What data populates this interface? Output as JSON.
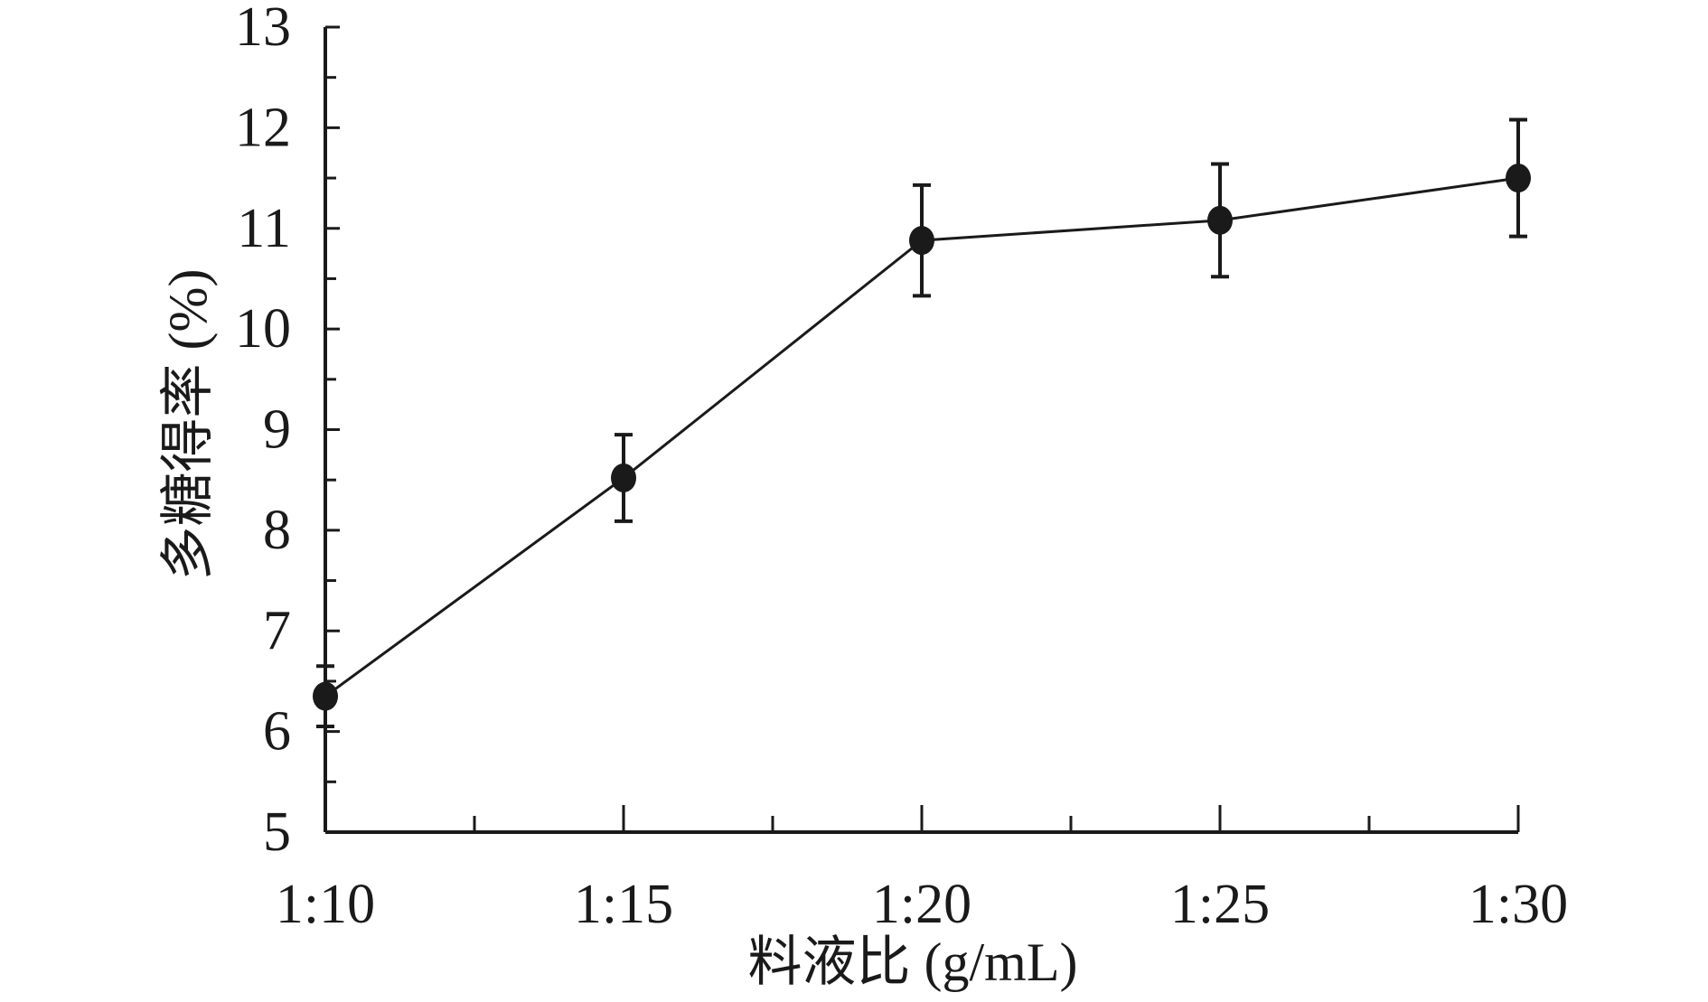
{
  "chart_data": {
    "type": "line",
    "title": "",
    "xlabel": "料液比 (g/mL)",
    "ylabel": "多糖得率 (%)",
    "categories": [
      "1:10",
      "1:15",
      "1:20",
      "1:25",
      "1:30"
    ],
    "series": [
      {
        "values": [
          6.35,
          8.52,
          10.88,
          11.08,
          11.5
        ],
        "error": [
          0.3,
          0.43,
          0.55,
          0.56,
          0.58
        ]
      }
    ],
    "ylim": [
      5,
      13
    ],
    "yticks": [
      5,
      6,
      7,
      8,
      9,
      10,
      11,
      12,
      13
    ],
    "grid": false,
    "legend": "none",
    "colors": {
      "line": "#1a1a1a",
      "marker": "#1a1a1a",
      "axis": "#1a1a1a"
    }
  }
}
